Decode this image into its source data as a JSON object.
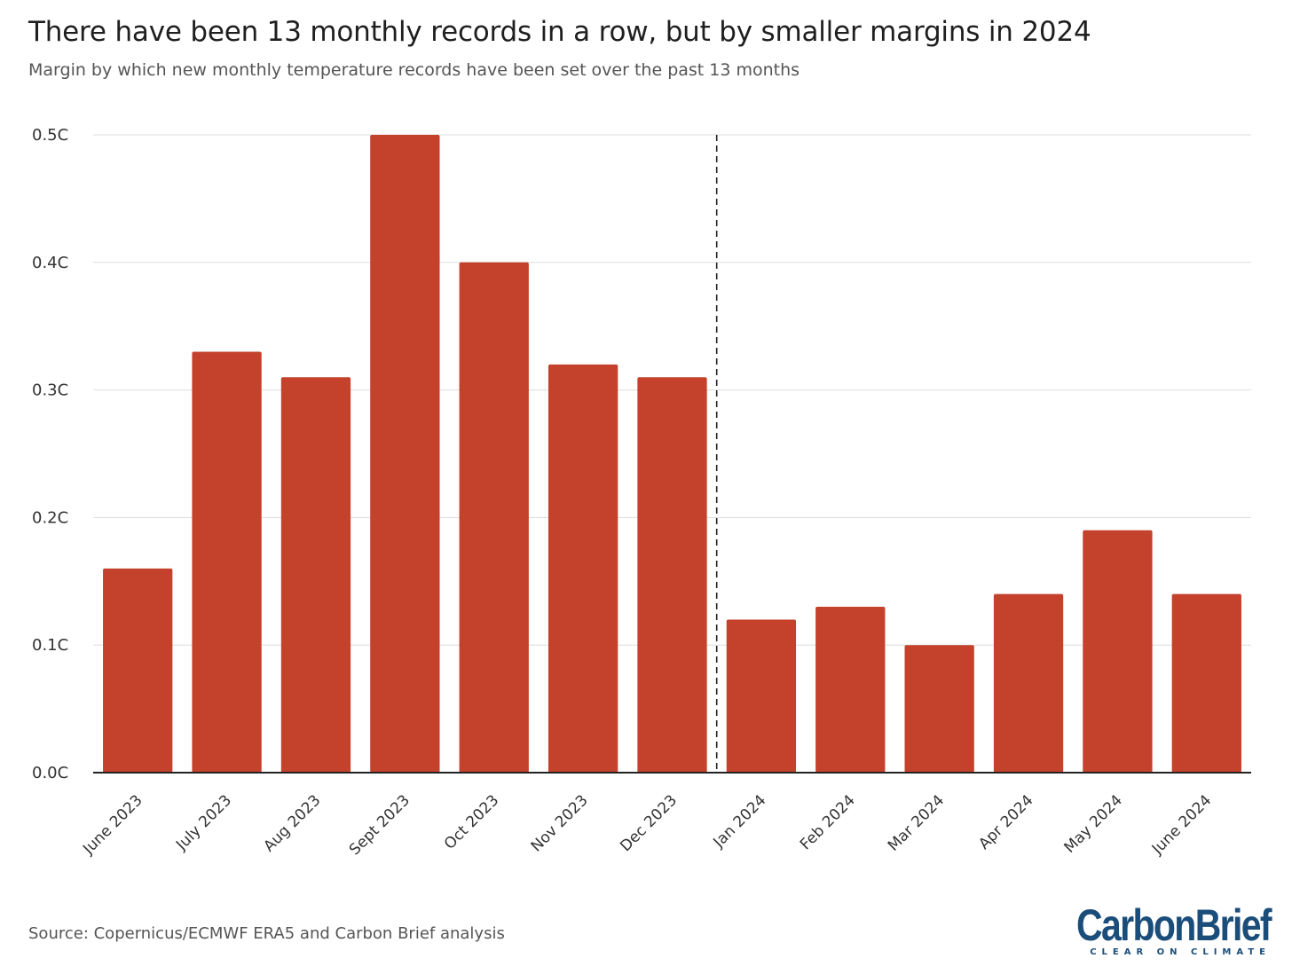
{
  "header": {
    "title": "There have been 13 monthly records in a row, but by smaller margins in 2024",
    "subtitle": "Margin by which new monthly temperature records have been set over the past 13 months"
  },
  "footer": {
    "source": "Source: Copernicus/ECMWF ERA5 and Carbon Brief analysis",
    "logo_text": "CarbonBrief",
    "logo_tagline": "CLEAR ON CLIMATE"
  },
  "colors": {
    "bar": "#c4412b",
    "grid": "#dddddd",
    "axis": "#222222",
    "logo": "#1a4d7a"
  },
  "chart_data": {
    "type": "bar",
    "title": "There have been 13 monthly records in a row, but by smaller margins in 2024",
    "subtitle": "Margin by which new monthly temperature records have been set over the past 13 months",
    "xlabel": "",
    "ylabel": "",
    "categories": [
      "June 2023",
      "July 2023",
      "Aug 2023",
      "Sept 2023",
      "Oct 2023",
      "Nov 2023",
      "Dec 2023",
      "Jan 2024",
      "Feb 2024",
      "Mar 2024",
      "Apr 2024",
      "May 2024",
      "June 2024"
    ],
    "values": [
      0.16,
      0.33,
      0.31,
      0.5,
      0.4,
      0.32,
      0.31,
      0.12,
      0.13,
      0.1,
      0.14,
      0.19,
      0.14
    ],
    "ylim": [
      0,
      0.5
    ],
    "yticks": [
      0.0,
      0.1,
      0.2,
      0.3,
      0.4,
      0.5
    ],
    "ytick_labels": [
      "0.0C",
      "0.1C",
      "0.2C",
      "0.3C",
      "0.4C",
      "0.5C"
    ],
    "grid": true,
    "divider_after_category": "Dec 2023",
    "legend": "none"
  }
}
